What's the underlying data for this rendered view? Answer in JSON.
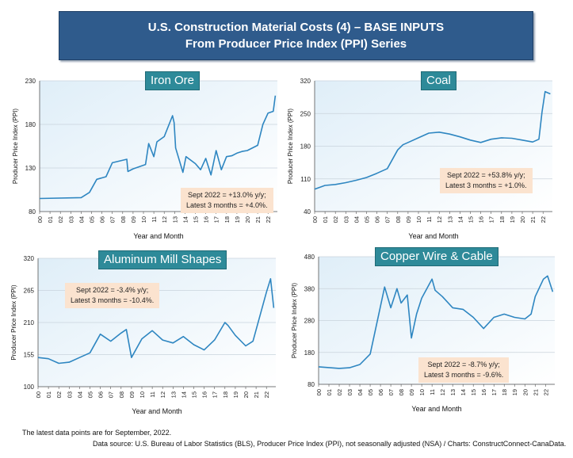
{
  "header": {
    "title_line1": "U.S. Construction Material Costs (4) – BASE INPUTS",
    "title_line2": "From Producer Price Index (PPI) Series"
  },
  "footer": {
    "note": "The latest data points are for September, 2022.",
    "source": "Data source: U.S. Bureau of Labor Statistics (BLS), Producer Price Index (PPI), not seasonally adjusted (NSA) / Charts: ConstructConnect-CanaData."
  },
  "chart_data": [
    {
      "type": "line",
      "title": "Iron Ore",
      "xlabel": "Year and Month",
      "ylabel": "Producer Price Index (PPI)",
      "ylim": [
        80,
        230
      ],
      "yticks": [
        80,
        130,
        180,
        230
      ],
      "xticks": [
        "00",
        "01",
        "02",
        "03",
        "04",
        "05",
        "06",
        "07",
        "08",
        "09",
        "10",
        "11",
        "12",
        "13",
        "14",
        "15",
        "16",
        "17",
        "18",
        "19",
        "20",
        "21",
        "22"
      ],
      "annotation": [
        "Sept 2022 = +13.0% y/y;",
        "Latest 3 months = +4.0%."
      ],
      "line_color": "#2e86c1",
      "x": [
        2000,
        2004,
        2004.8,
        2005.5,
        2006.4,
        2007,
        2008.4,
        2008.5,
        2009,
        2010.2,
        2010.5,
        2011,
        2011.3,
        2012,
        2012.8,
        2012.95,
        2013.1,
        2013.8,
        2014.1,
        2015,
        2015.5,
        2016,
        2016.5,
        2017,
        2017.5,
        2018,
        2018.5,
        2019,
        2019.5,
        2020,
        2021,
        2021.5,
        2022,
        2022.5,
        2022.7
      ],
      "y": [
        95,
        96,
        102,
        117,
        120,
        136,
        140,
        126,
        129,
        134,
        158,
        143,
        160,
        166,
        190,
        182,
        153,
        125,
        143,
        135,
        128,
        141,
        122,
        150,
        128,
        143,
        144,
        147,
        149,
        150,
        156,
        180,
        193,
        195,
        213
      ]
    },
    {
      "type": "line",
      "title": "Coal",
      "xlabel": "Year and Month",
      "ylabel": "Producer Price Index (PPI)",
      "ylim": [
        40,
        320
      ],
      "yticks": [
        40,
        110,
        180,
        250,
        320
      ],
      "xticks": [
        "00",
        "01",
        "02",
        "03",
        "04",
        "05",
        "06",
        "07",
        "08",
        "09",
        "10",
        "11",
        "12",
        "13",
        "14",
        "15",
        "16",
        "17",
        "18",
        "19",
        "20",
        "21",
        "22"
      ],
      "annotation": [
        "Sept 2022 = +53.8% y/y;",
        "Latest 3 months = +1.0%."
      ],
      "line_color": "#2e86c1",
      "x": [
        2000,
        2001,
        2002,
        2003,
        2004,
        2005,
        2006,
        2007,
        2008,
        2008.5,
        2009,
        2010,
        2011,
        2012,
        2013,
        2014,
        2015,
        2016,
        2017,
        2018,
        2019,
        2020,
        2021,
        2021.6,
        2021.9,
        2022.2,
        2022.7
      ],
      "y": [
        88,
        96,
        98,
        102,
        107,
        113,
        122,
        132,
        172,
        183,
        188,
        198,
        208,
        210,
        206,
        200,
        193,
        188,
        195,
        198,
        197,
        193,
        189,
        195,
        253,
        297,
        292
      ]
    },
    {
      "type": "line",
      "title": "Aluminum Mill Shapes",
      "xlabel": "Year and Month",
      "ylabel": "Producer Price Index (PPI)",
      "ylim": [
        100,
        320
      ],
      "yticks": [
        100,
        155,
        210,
        265,
        320
      ],
      "xticks": [
        "00",
        "01",
        "02",
        "03",
        "04",
        "05",
        "06",
        "07",
        "08",
        "09",
        "10",
        "11",
        "12",
        "13",
        "14",
        "15",
        "16",
        "17",
        "18",
        "19",
        "20",
        "21",
        "22"
      ],
      "annotation": [
        "Sept 2022 = -3.4% y/y;",
        "Latest 3 months = -10.4%."
      ],
      "line_color": "#2e86c1",
      "x": [
        2000,
        2001,
        2002,
        2003,
        2004,
        2005,
        2006,
        2007,
        2008,
        2008.5,
        2009,
        2010,
        2011,
        2012,
        2013,
        2014,
        2015,
        2016,
        2017,
        2018,
        2018.3,
        2019,
        2020,
        2020.7,
        2021.5,
        2022,
        2022.4,
        2022.7
      ],
      "y": [
        150,
        148,
        140,
        142,
        150,
        158,
        190,
        178,
        192,
        198,
        150,
        182,
        196,
        180,
        175,
        186,
        172,
        163,
        180,
        210,
        205,
        188,
        170,
        178,
        230,
        262,
        285,
        235
      ]
    },
    {
      "type": "line",
      "title": "Copper Wire & Cable",
      "xlabel": "Year and Month",
      "ylabel": "Producer Price Index (PPI)",
      "ylim": [
        80,
        480
      ],
      "yticks": [
        80,
        180,
        280,
        380,
        480
      ],
      "xticks": [
        "00",
        "01",
        "02",
        "03",
        "04",
        "05",
        "06",
        "07",
        "08",
        "09",
        "10",
        "11",
        "12",
        "13",
        "14",
        "15",
        "16",
        "17",
        "18",
        "19",
        "20",
        "21",
        "22"
      ],
      "annotation": [
        "Sept 2022 = -8.7% y/y;",
        "Latest 3 months = -9.6%."
      ],
      "line_color": "#2e86c1",
      "x": [
        2000,
        2002,
        2003,
        2004,
        2005,
        2006,
        2006.4,
        2007,
        2007.6,
        2008,
        2008.6,
        2009,
        2009.5,
        2010,
        2011,
        2011.3,
        2012,
        2013,
        2014,
        2015,
        2016,
        2017,
        2018,
        2019,
        2020,
        2020.6,
        2021,
        2021.8,
        2022.2,
        2022.7
      ],
      "y": [
        135,
        130,
        132,
        142,
        175,
        325,
        385,
        320,
        380,
        335,
        360,
        225,
        300,
        350,
        410,
        375,
        355,
        320,
        315,
        290,
        255,
        290,
        300,
        290,
        285,
        300,
        355,
        410,
        420,
        370
      ]
    }
  ]
}
